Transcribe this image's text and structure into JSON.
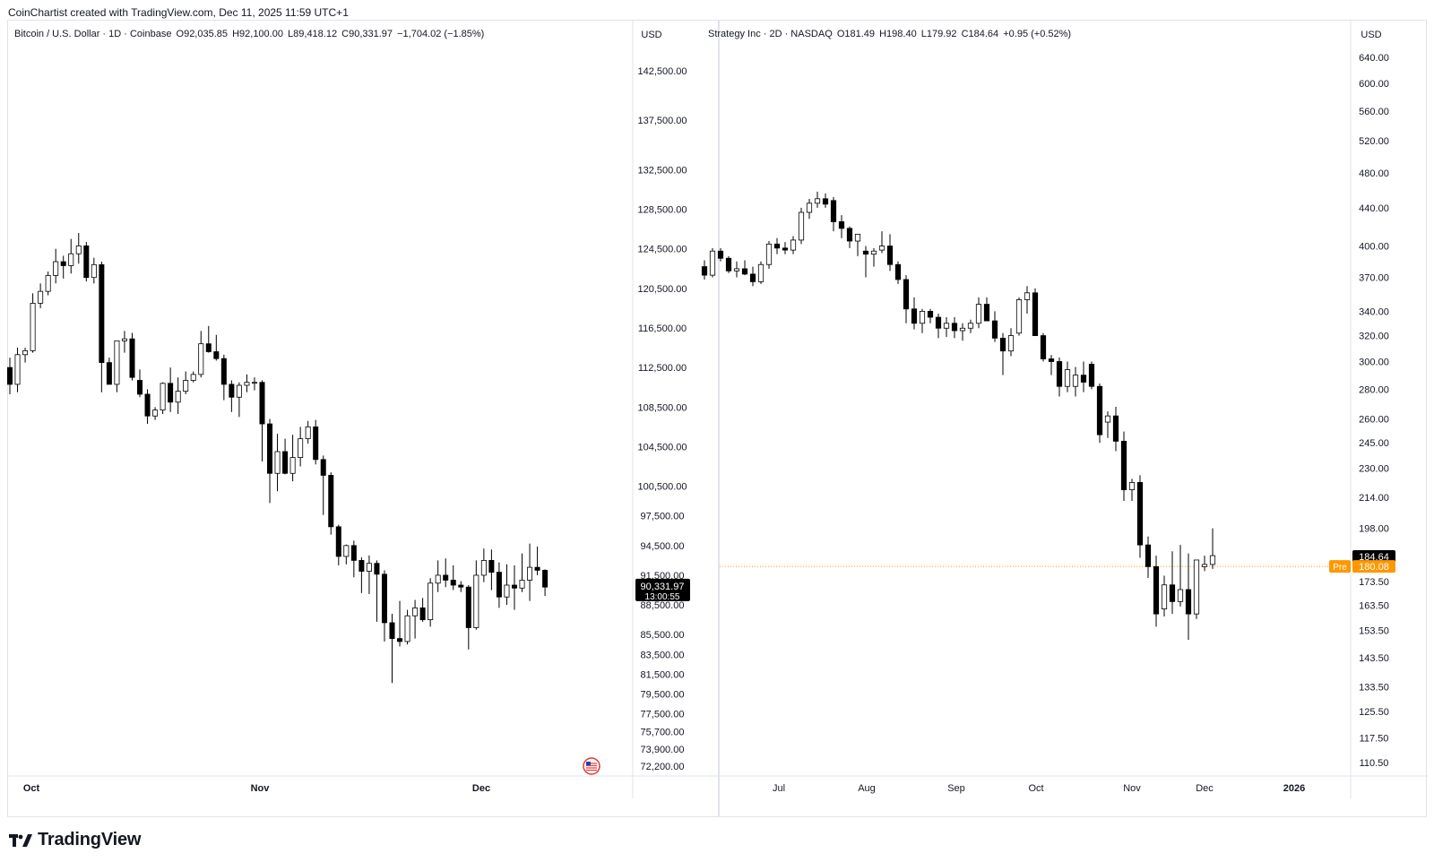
{
  "header": {
    "created_text": "CoinChartist created with TradingView.com, Dec 11, 2025 11:59 UTC+1"
  },
  "footer": {
    "brand": "TradingView"
  },
  "colors": {
    "up_fill": "#ffffff",
    "down_fill": "#000000",
    "candle_line": "#000000",
    "pre_orange": "#ff9800",
    "border": "#e0e3eb"
  },
  "chart_data": [
    {
      "type": "candlestick",
      "symbol_title": "Bitcoin / U.S. Dollar · 1D · Coinbase",
      "legend": {
        "o": "O92,035.85",
        "h": "H92,100.00",
        "l": "L89,418.12",
        "c": "C90,331.97",
        "chg": "−1,704.02 (−1.85%)"
      },
      "currency": "USD",
      "y_ticks": [
        "142,500.00",
        "137,500.00",
        "132,500.00",
        "128,500.00",
        "124,500.00",
        "120,500.00",
        "116,500.00",
        "112,500.00",
        "108,500.00",
        "104,500.00",
        "100,500.00",
        "97,500.00",
        "94,500.00",
        "91,500.00",
        "88,500.00",
        "85,500.00",
        "83,500.00",
        "81,500.00",
        "79,500.00",
        "77,500.00",
        "75,700.00",
        "73,900.00",
        "72,200.00"
      ],
      "x_labels": [
        "Oct",
        "Nov",
        "Dec"
      ],
      "ylim": [
        72200,
        142500
      ],
      "last_price": {
        "value": "90,331.97",
        "countdown": "13:00:55"
      },
      "candles": [
        [
          112500,
          113500,
          109800,
          110800
        ],
        [
          110800,
          114500,
          110000,
          113800
        ],
        [
          113800,
          114500,
          113000,
          114200
        ],
        [
          114200,
          120000,
          114000,
          119000
        ],
        [
          119000,
          121000,
          118500,
          120200
        ],
        [
          120200,
          122200,
          119800,
          121800
        ],
        [
          121800,
          124500,
          121000,
          123200
        ],
        [
          123200,
          123800,
          121500,
          122800
        ],
        [
          122800,
          125500,
          122000,
          124000
        ],
        [
          124000,
          126100,
          123000,
          124800
        ],
        [
          124800,
          125200,
          121200,
          121600
        ],
        [
          121600,
          123600,
          121000,
          122900
        ],
        [
          122900,
          123200,
          110000,
          113000
        ],
        [
          113000,
          113500,
          110800,
          110800
        ],
        [
          110800,
          115200,
          110000,
          115200
        ],
        [
          115200,
          116200,
          114000,
          115400
        ],
        [
          115400,
          116000,
          111200,
          111500
        ],
        [
          111200,
          112300,
          109500,
          109800
        ],
        [
          109800,
          110300,
          106800,
          107600
        ],
        [
          107600,
          108500,
          107200,
          108200
        ],
        [
          108200,
          111000,
          107800,
          110900
        ],
        [
          110900,
          112500,
          108000,
          109000
        ],
        [
          109000,
          111500,
          107800,
          110100
        ],
        [
          110100,
          112100,
          109800,
          111200
        ],
        [
          111200,
          112100,
          111000,
          111800
        ],
        [
          111800,
          116200,
          111500,
          114900
        ],
        [
          114900,
          116700,
          114000,
          114100
        ],
        [
          114100,
          115800,
          113200,
          113400
        ],
        [
          113400,
          113800,
          109200,
          110800
        ],
        [
          110800,
          111200,
          108000,
          109500
        ],
        [
          109500,
          111000,
          107500,
          110700
        ],
        [
          110700,
          111800,
          110000,
          111000
        ],
        [
          111000,
          111500,
          110200,
          111000
        ],
        [
          111000,
          111200,
          103000,
          106800
        ],
        [
          106800,
          107300,
          98800,
          101800
        ],
        [
          101800,
          105800,
          100000,
          104000
        ],
        [
          104000,
          105300,
          101700,
          101800
        ],
        [
          101800,
          105700,
          101000,
          103400
        ],
        [
          103400,
          106500,
          102500,
          105300
        ],
        [
          105300,
          107100,
          104800,
          106500
        ],
        [
          106500,
          107200,
          102700,
          103200
        ],
        [
          103200,
          103600,
          97600,
          101600
        ],
        [
          101600,
          101900,
          95600,
          96400
        ],
        [
          96400,
          96600,
          92500,
          93400
        ],
        [
          93400,
          94600,
          92600,
          94500
        ],
        [
          94500,
          95000,
          91300,
          93000
        ],
        [
          93000,
          93300,
          89700,
          91900
        ],
        [
          91900,
          93500,
          89600,
          92700
        ],
        [
          92700,
          93000,
          86800,
          91600
        ],
        [
          91600,
          92000,
          84800,
          86700
        ],
        [
          86700,
          87600,
          80600,
          85100
        ],
        [
          85100,
          88900,
          84300,
          84800
        ],
        [
          84800,
          88000,
          84500,
          87400
        ],
        [
          87400,
          89000,
          85100,
          88200
        ],
        [
          88200,
          89200,
          86800,
          87000
        ],
        [
          87000,
          91200,
          86300,
          90700
        ],
        [
          90700,
          93000,
          89800,
          91500
        ],
        [
          91500,
          93200,
          90300,
          91000
        ],
        [
          91000,
          92500,
          90000,
          90500
        ],
        [
          90500,
          90900,
          89800,
          90300
        ],
        [
          90300,
          90500,
          84000,
          86200
        ],
        [
          86200,
          93000,
          86000,
          91500
        ],
        [
          91500,
          94200,
          90800,
          93000
        ],
        [
          93000,
          94100,
          90000,
          91800
        ],
        [
          91800,
          92800,
          88200,
          89300
        ],
        [
          89300,
          92600,
          88500,
          90500
        ],
        [
          90500,
          92500,
          88000,
          90200
        ],
        [
          90200,
          93700,
          89800,
          91000
        ],
        [
          91000,
          94700,
          88900,
          92300
        ],
        [
          92300,
          94400,
          91500,
          92000
        ],
        [
          92000,
          92100,
          89400,
          90300
        ]
      ]
    },
    {
      "type": "candlestick",
      "symbol_title": "Strategy Inc · 2D · NASDAQ",
      "legend": {
        "o": "O181.49",
        "h": "H198.40",
        "l": "L179.92",
        "c": "C184.64",
        "chg": "+0.95 (+0.52%)"
      },
      "currency": "USD",
      "y_ticks": [
        "640.00",
        "600.00",
        "560.00",
        "520.00",
        "480.00",
        "440.00",
        "400.00",
        "370.00",
        "340.00",
        "320.00",
        "300.00",
        "280.00",
        "260.00",
        "245.00",
        "230.00",
        "214.00",
        "198.00",
        "184.64",
        "173.50",
        "163.50",
        "153.50",
        "143.50",
        "133.50",
        "125.50",
        "117.50",
        "110.50"
      ],
      "x_labels": [
        "Jul",
        "Aug",
        "Sep",
        "Oct",
        "Nov",
        "Dec",
        "2026"
      ],
      "log_scale": true,
      "last_price": {
        "value": "184.64"
      },
      "pre_market": {
        "label": "Pre",
        "value": "180.08"
      },
      "candles": [
        [
          380,
          386,
          368,
          372
        ],
        [
          372,
          398,
          370,
          395
        ],
        [
          395,
          398,
          385,
          388
        ],
        [
          388,
          390,
          374,
          376
        ],
        [
          376,
          385,
          370,
          378
        ],
        [
          378,
          386,
          372,
          373
        ],
        [
          373,
          380,
          362,
          366
        ],
        [
          366,
          385,
          364,
          382
        ],
        [
          382,
          405,
          378,
          402
        ],
        [
          402,
          408,
          392,
          398
        ],
        [
          398,
          404,
          392,
          396
        ],
        [
          396,
          410,
          392,
          406
        ],
        [
          406,
          440,
          402,
          435
        ],
        [
          435,
          450,
          428,
          445
        ],
        [
          445,
          458,
          440,
          450
        ],
        [
          450,
          456,
          440,
          444
        ],
        [
          448,
          452,
          415,
          425
        ],
        [
          425,
          432,
          408,
          418
        ],
        [
          418,
          420,
          398,
          405
        ],
        [
          405,
          410,
          390,
          412
        ],
        [
          395,
          400,
          370,
          392
        ],
        [
          392,
          398,
          380,
          395
        ],
        [
          396,
          415,
          393,
          400
        ],
        [
          400,
          412,
          376,
          382
        ],
        [
          382,
          385,
          364,
          368
        ],
        [
          368,
          372,
          330,
          342
        ],
        [
          342,
          352,
          325,
          330
        ],
        [
          330,
          342,
          322,
          340
        ],
        [
          340,
          342,
          330,
          335
        ],
        [
          335,
          338,
          318,
          326
        ],
        [
          326,
          335,
          319,
          330
        ],
        [
          330,
          335,
          318,
          324
        ],
        [
          324,
          330,
          316,
          326
        ],
        [
          326,
          333,
          322,
          330
        ],
        [
          330,
          352,
          326,
          346
        ],
        [
          346,
          352,
          332,
          332
        ],
        [
          332,
          340,
          315,
          318
        ],
        [
          318,
          322,
          290,
          308
        ],
        [
          308,
          326,
          304,
          320
        ],
        [
          322,
          352,
          320,
          350
        ],
        [
          350,
          362,
          338,
          356
        ],
        [
          356,
          360,
          320,
          320
        ],
        [
          320,
          322,
          300,
          302
        ],
        [
          302,
          305,
          290,
          300
        ],
        [
          300,
          303,
          275,
          282
        ],
        [
          282,
          300,
          278,
          294
        ],
        [
          282,
          296,
          275,
          290
        ],
        [
          290,
          300,
          278,
          285
        ],
        [
          298,
          300,
          280,
          282
        ],
        [
          282,
          284,
          245,
          250
        ],
        [
          258,
          265,
          248,
          262
        ],
        [
          262,
          268,
          240,
          246
        ],
        [
          246,
          252,
          212,
          218
        ],
        [
          218,
          224,
          212,
          222
        ],
        [
          222,
          226,
          184,
          190
        ],
        [
          190,
          194,
          175,
          180
        ],
        [
          180,
          185,
          155,
          160
        ],
        [
          162,
          176,
          159,
          172
        ],
        [
          172,
          187,
          160,
          165
        ],
        [
          165,
          190,
          163,
          170
        ],
        [
          170,
          186,
          150,
          160
        ],
        [
          160,
          180,
          158,
          183
        ],
        [
          180,
          185,
          178,
          181
        ],
        [
          181,
          198,
          179,
          185
        ]
      ]
    }
  ]
}
